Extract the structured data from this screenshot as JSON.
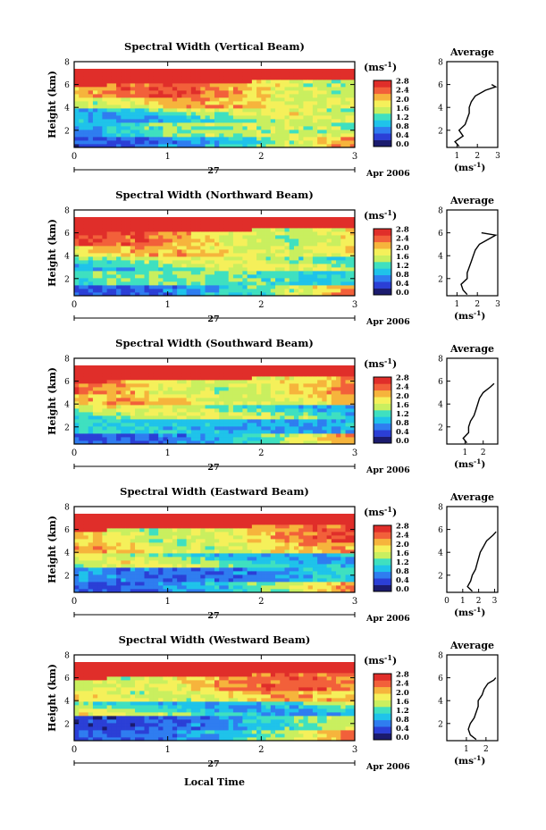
{
  "figure": {
    "xlabel": "Local Time",
    "date_day": "27",
    "date_label": "Apr 2006",
    "colorbar_unit": "(ms",
    "colorbar_unit_exp": "-1",
    "colorbar_unit_close": ")",
    "avg_title": "Average",
    "avg_xlabel": "(ms",
    "avg_xlabel_exp": "-1",
    "avg_xlabel_close": ")",
    "ylabel": "Height (km)"
  },
  "colorbar_ticks": [
    "0.0",
    "0.4",
    "0.8",
    "1.2",
    "1.6",
    "2.0",
    "2.4",
    "2.8"
  ],
  "colorbar_ticks_alt": [
    "0.0",
    "0.4",
    "0.8",
    "1.2",
    "1.6",
    "2.0",
    "2.4",
    "2.8"
  ],
  "colors": {
    "scale": [
      "#1b1b6e",
      "#2b3fd6",
      "#2f7df0",
      "#1fc3ea",
      "#3fe0c0",
      "#c9ef5f",
      "#f5f05a",
      "#f6b43c",
      "#f2603a",
      "#e02e2a"
    ],
    "axis": "#000000"
  },
  "chart_data": [
    {
      "type": "heatmap",
      "title": "Spectral Width (Vertical Beam)",
      "x_ticks": [
        "0",
        "1",
        "2",
        "3"
      ],
      "y_ticks": [
        "2",
        "4",
        "6",
        "8"
      ],
      "xlim": [
        0,
        3
      ],
      "ylim": [
        0.5,
        8
      ],
      "colorbar_ticks": [
        "0.0",
        "0.4",
        "0.8",
        "1.2",
        "1.6",
        "2.0",
        "2.4",
        "2.8"
      ],
      "average": {
        "x_ticks": [
          "1",
          "2",
          "3"
        ],
        "y_ticks": [
          "2",
          "4",
          "6",
          "8"
        ],
        "xlim": [
          0.5,
          3
        ],
        "ylim": [
          0.5,
          8
        ],
        "heights": [
          0.6,
          1.0,
          1.5,
          2.0,
          2.5,
          3.0,
          3.5,
          4.0,
          4.5,
          5.0,
          5.5,
          5.8,
          6.0
        ],
        "values": [
          1.1,
          0.9,
          1.3,
          1.1,
          1.4,
          1.5,
          1.6,
          1.6,
          1.7,
          1.9,
          2.4,
          2.9,
          2.7
        ]
      }
    },
    {
      "type": "heatmap",
      "title": "Spectral Width (Northward Beam)",
      "x_ticks": [
        "0",
        "1",
        "2",
        "3"
      ],
      "y_ticks": [
        "2",
        "4",
        "6",
        "8"
      ],
      "xlim": [
        0,
        3
      ],
      "ylim": [
        0.5,
        8
      ],
      "colorbar_ticks": [
        "0.0",
        "0.4",
        "0.8",
        "1.2",
        "1.6",
        "2.0",
        "2.4",
        "2.8"
      ],
      "average": {
        "x_ticks": [
          "1",
          "2",
          "3"
        ],
        "y_ticks": [
          "2",
          "4",
          "6",
          "8"
        ],
        "xlim": [
          0.5,
          3
        ],
        "ylim": [
          0.5,
          8
        ],
        "heights": [
          0.6,
          1.0,
          1.5,
          2.0,
          2.5,
          3.0,
          3.5,
          4.0,
          4.5,
          5.0,
          5.5,
          5.8,
          6.0
        ],
        "values": [
          1.5,
          1.3,
          1.2,
          1.5,
          1.5,
          1.6,
          1.7,
          1.8,
          1.9,
          2.1,
          2.6,
          2.9,
          2.2
        ]
      }
    },
    {
      "type": "heatmap",
      "title": "Spectral Width (Southward Beam)",
      "x_ticks": [
        "0",
        "1",
        "2",
        "3"
      ],
      "y_ticks": [
        "2",
        "4",
        "6",
        "8"
      ],
      "xlim": [
        0,
        3
      ],
      "ylim": [
        0.5,
        8
      ],
      "colorbar_ticks": [
        "0.0",
        "0.4",
        "0.8",
        "1.2",
        "1.6",
        "2.0",
        "2.4",
        "2.8"
      ],
      "average": {
        "x_ticks": [
          "1",
          "2"
        ],
        "y_ticks": [
          "2",
          "4",
          "6",
          "8"
        ],
        "xlim": [
          0,
          2.8
        ],
        "ylim": [
          0.5,
          8
        ],
        "heights": [
          0.6,
          1.0,
          1.5,
          2.0,
          2.5,
          3.0,
          3.5,
          4.0,
          4.5,
          5.0,
          5.5,
          5.8
        ],
        "values": [
          1.1,
          0.9,
          1.2,
          1.2,
          1.3,
          1.5,
          1.6,
          1.7,
          1.8,
          2.0,
          2.4,
          2.6
        ]
      }
    },
    {
      "type": "heatmap",
      "title": "Spectral Width (Eastward Beam)",
      "x_ticks": [
        "0",
        "1",
        "2",
        "3"
      ],
      "y_ticks": [
        "2",
        "4",
        "6",
        "8"
      ],
      "xlim": [
        0,
        3
      ],
      "ylim": [
        0.5,
        8
      ],
      "colorbar_ticks": [
        "0.0",
        "0.4",
        "0.8",
        "1.2",
        "1.6",
        "2.0",
        "2.4",
        "2.8"
      ],
      "average": {
        "x_ticks": [
          "0",
          "1",
          "2",
          "3"
        ],
        "y_ticks": [
          "2",
          "4",
          "6",
          "8"
        ],
        "xlim": [
          0,
          3.2
        ],
        "ylim": [
          0.5,
          8
        ],
        "heights": [
          0.6,
          1.0,
          1.5,
          2.0,
          2.5,
          3.0,
          3.5,
          4.0,
          4.5,
          5.0,
          5.5,
          5.8
        ],
        "values": [
          1.6,
          1.3,
          1.5,
          1.6,
          1.8,
          1.9,
          2.0,
          2.1,
          2.3,
          2.5,
          2.9,
          3.1
        ]
      }
    },
    {
      "type": "heatmap",
      "title": "Spectral Width (Westward Beam)",
      "x_ticks": [
        "0",
        "1",
        "2",
        "3"
      ],
      "y_ticks": [
        "2",
        "4",
        "6",
        "8"
      ],
      "xlim": [
        0,
        3
      ],
      "ylim": [
        0.5,
        8
      ],
      "colorbar_ticks": [
        "0.0",
        "0.4",
        "0.8",
        "1.2",
        "1.6",
        "2.0",
        "2.4",
        "2.8"
      ],
      "average": {
        "x_ticks": [
          "1",
          "2"
        ],
        "y_ticks": [
          "2",
          "4",
          "6",
          "8"
        ],
        "xlim": [
          0,
          2.6
        ],
        "ylim": [
          0.5,
          8
        ],
        "heights": [
          0.6,
          1.0,
          1.5,
          2.0,
          2.5,
          3.0,
          3.5,
          4.0,
          4.5,
          5.0,
          5.5,
          5.8,
          6.0
        ],
        "values": [
          1.5,
          1.2,
          1.1,
          1.2,
          1.4,
          1.5,
          1.6,
          1.6,
          1.8,
          1.9,
          2.1,
          2.4,
          2.5
        ]
      }
    }
  ]
}
